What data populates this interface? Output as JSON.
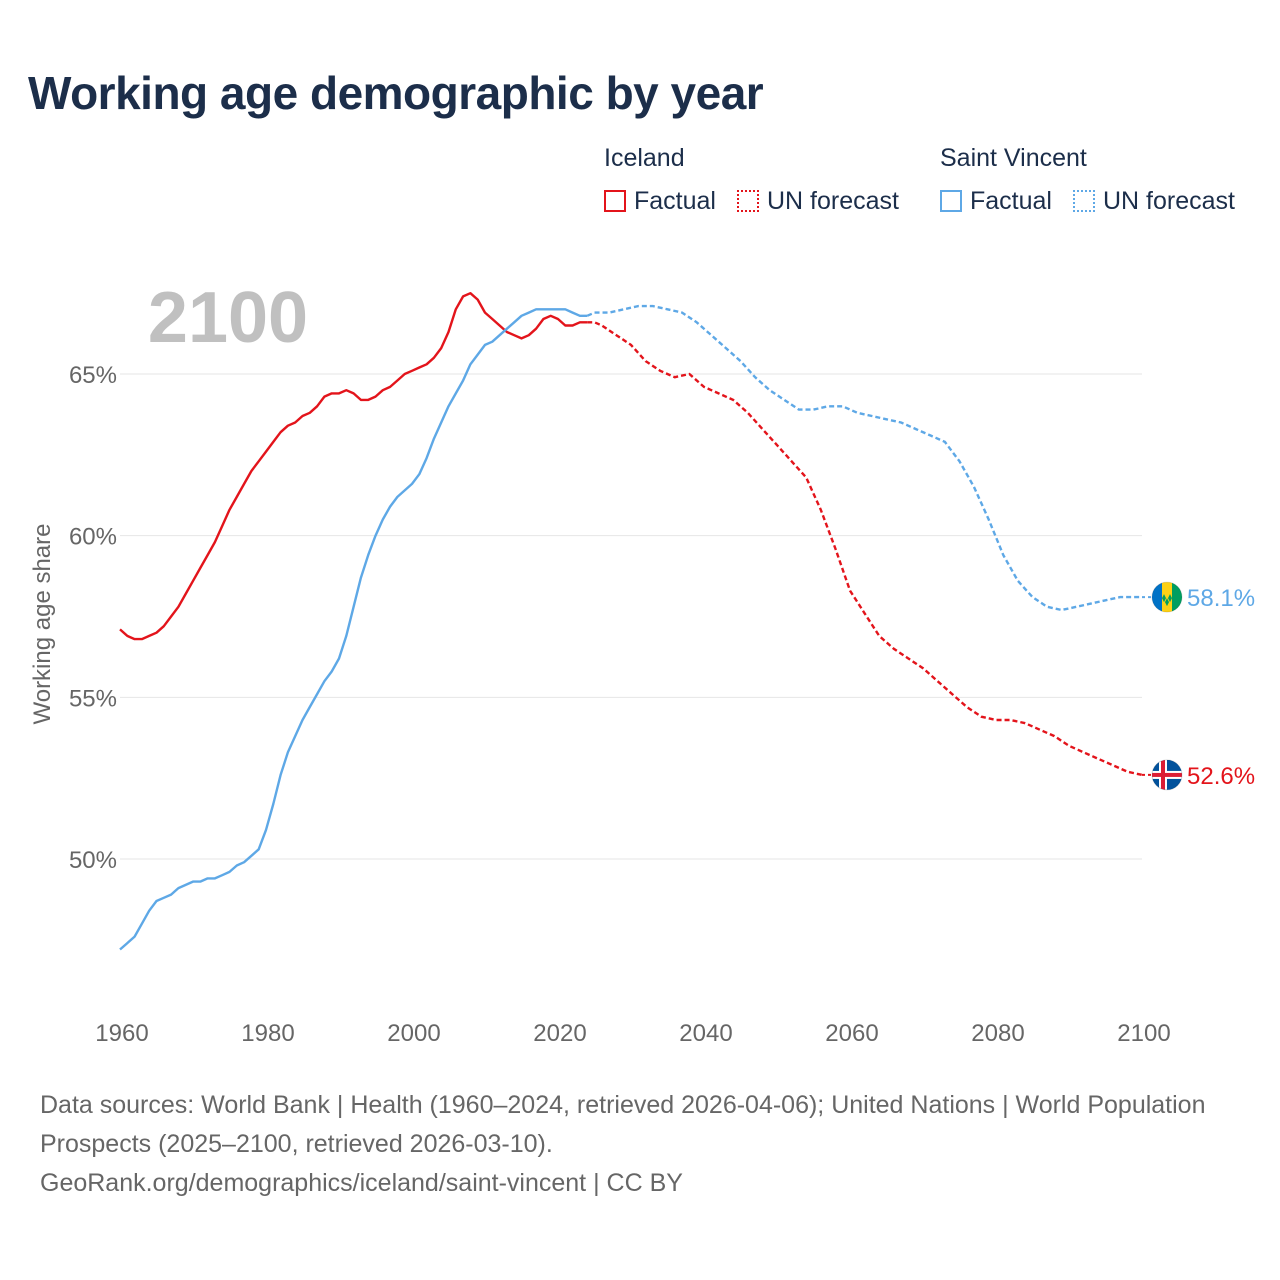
{
  "title": "Working age demographic by year",
  "colors": {
    "iceland": "#e3141b",
    "saint_vincent": "#5ea8e6",
    "title": "#1c2e4a",
    "axis_text": "#666666",
    "grid": "#e6e6e6",
    "year_watermark": "#c0c0c0"
  },
  "legend": {
    "groups": [
      {
        "name": "Iceland",
        "factual_label": "Factual",
        "forecast_label": "UN forecast",
        "color": "#e3141b"
      },
      {
        "name": "Saint Vincent",
        "factual_label": "Factual",
        "forecast_label": "UN forecast",
        "color": "#5ea8e6"
      }
    ]
  },
  "chart_data": {
    "type": "line",
    "title": "Working age demographic by year",
    "current_year_label": "2100",
    "xlabel": "",
    "ylabel": "Working age share",
    "xlim": [
      1960,
      2100
    ],
    "ylim": [
      46.5,
      66.5
    ],
    "x_ticks": [
      1960,
      1980,
      2000,
      2020,
      2040,
      2060,
      2080,
      2100
    ],
    "y_ticks": [
      50,
      55,
      60,
      65
    ],
    "y_tick_labels": [
      "50%",
      "55%",
      "60%",
      "65%"
    ],
    "factual_range": [
      1960,
      2024
    ],
    "forecast_range": [
      2024,
      2100
    ],
    "series": [
      {
        "name": "Iceland",
        "end_label": "52.6%",
        "flag": "iceland-flag",
        "points": [
          [
            1960,
            57.1
          ],
          [
            1961,
            56.9
          ],
          [
            1962,
            56.8
          ],
          [
            1963,
            56.8
          ],
          [
            1964,
            56.9
          ],
          [
            1965,
            57.0
          ],
          [
            1966,
            57.2
          ],
          [
            1967,
            57.5
          ],
          [
            1968,
            57.8
          ],
          [
            1969,
            58.2
          ],
          [
            1970,
            58.6
          ],
          [
            1971,
            59.0
          ],
          [
            1972,
            59.4
          ],
          [
            1973,
            59.8
          ],
          [
            1974,
            60.3
          ],
          [
            1975,
            60.8
          ],
          [
            1976,
            61.2
          ],
          [
            1977,
            61.6
          ],
          [
            1978,
            62.0
          ],
          [
            1979,
            62.3
          ],
          [
            1980,
            62.6
          ],
          [
            1981,
            62.9
          ],
          [
            1982,
            63.2
          ],
          [
            1983,
            63.4
          ],
          [
            1984,
            63.5
          ],
          [
            1985,
            63.7
          ],
          [
            1986,
            63.8
          ],
          [
            1987,
            64.0
          ],
          [
            1988,
            64.3
          ],
          [
            1989,
            64.4
          ],
          [
            1990,
            64.4
          ],
          [
            1991,
            64.5
          ],
          [
            1992,
            64.4
          ],
          [
            1993,
            64.2
          ],
          [
            1994,
            64.2
          ],
          [
            1995,
            64.3
          ],
          [
            1996,
            64.5
          ],
          [
            1997,
            64.6
          ],
          [
            1998,
            64.8
          ],
          [
            1999,
            65.0
          ],
          [
            2000,
            65.1
          ],
          [
            2001,
            65.2
          ],
          [
            2002,
            65.3
          ],
          [
            2003,
            65.5
          ],
          [
            2004,
            65.8
          ],
          [
            2005,
            66.3
          ],
          [
            2006,
            67.0
          ],
          [
            2007,
            67.4
          ],
          [
            2008,
            67.5
          ],
          [
            2009,
            67.3
          ],
          [
            2010,
            66.9
          ],
          [
            2011,
            66.7
          ],
          [
            2012,
            66.5
          ],
          [
            2013,
            66.3
          ],
          [
            2014,
            66.2
          ],
          [
            2015,
            66.1
          ],
          [
            2016,
            66.2
          ],
          [
            2017,
            66.4
          ],
          [
            2018,
            66.7
          ],
          [
            2019,
            66.8
          ],
          [
            2020,
            66.7
          ],
          [
            2021,
            66.5
          ],
          [
            2022,
            66.5
          ],
          [
            2023,
            66.6
          ],
          [
            2024,
            66.6
          ],
          [
            2025,
            66.6
          ],
          [
            2026,
            66.5
          ],
          [
            2028,
            66.2
          ],
          [
            2030,
            65.9
          ],
          [
            2032,
            65.4
          ],
          [
            2034,
            65.1
          ],
          [
            2036,
            64.9
          ],
          [
            2038,
            65.0
          ],
          [
            2040,
            64.6
          ],
          [
            2042,
            64.4
          ],
          [
            2044,
            64.2
          ],
          [
            2046,
            63.8
          ],
          [
            2048,
            63.3
          ],
          [
            2050,
            62.8
          ],
          [
            2052,
            62.3
          ],
          [
            2054,
            61.8
          ],
          [
            2056,
            60.8
          ],
          [
            2058,
            59.6
          ],
          [
            2060,
            58.3
          ],
          [
            2062,
            57.6
          ],
          [
            2064,
            56.9
          ],
          [
            2066,
            56.5
          ],
          [
            2068,
            56.2
          ],
          [
            2070,
            55.9
          ],
          [
            2072,
            55.5
          ],
          [
            2074,
            55.1
          ],
          [
            2076,
            54.7
          ],
          [
            2078,
            54.4
          ],
          [
            2080,
            54.3
          ],
          [
            2082,
            54.3
          ],
          [
            2084,
            54.2
          ],
          [
            2086,
            54.0
          ],
          [
            2088,
            53.8
          ],
          [
            2090,
            53.5
          ],
          [
            2092,
            53.3
          ],
          [
            2094,
            53.1
          ],
          [
            2096,
            52.9
          ],
          [
            2098,
            52.7
          ],
          [
            2100,
            52.6
          ]
        ]
      },
      {
        "name": "Saint Vincent",
        "end_label": "58.1%",
        "flag": "saint-vincent-flag",
        "points": [
          [
            1960,
            47.2
          ],
          [
            1961,
            47.4
          ],
          [
            1962,
            47.6
          ],
          [
            1963,
            48.0
          ],
          [
            1964,
            48.4
          ],
          [
            1965,
            48.7
          ],
          [
            1966,
            48.8
          ],
          [
            1967,
            48.9
          ],
          [
            1968,
            49.1
          ],
          [
            1969,
            49.2
          ],
          [
            1970,
            49.3
          ],
          [
            1971,
            49.3
          ],
          [
            1972,
            49.4
          ],
          [
            1973,
            49.4
          ],
          [
            1974,
            49.5
          ],
          [
            1975,
            49.6
          ],
          [
            1976,
            49.8
          ],
          [
            1977,
            49.9
          ],
          [
            1978,
            50.1
          ],
          [
            1979,
            50.3
          ],
          [
            1980,
            50.9
          ],
          [
            1981,
            51.7
          ],
          [
            1982,
            52.6
          ],
          [
            1983,
            53.3
          ],
          [
            1984,
            53.8
          ],
          [
            1985,
            54.3
          ],
          [
            1986,
            54.7
          ],
          [
            1987,
            55.1
          ],
          [
            1988,
            55.5
          ],
          [
            1989,
            55.8
          ],
          [
            1990,
            56.2
          ],
          [
            1991,
            56.9
          ],
          [
            1992,
            57.8
          ],
          [
            1993,
            58.7
          ],
          [
            1994,
            59.4
          ],
          [
            1995,
            60.0
          ],
          [
            1996,
            60.5
          ],
          [
            1997,
            60.9
          ],
          [
            1998,
            61.2
          ],
          [
            1999,
            61.4
          ],
          [
            2000,
            61.6
          ],
          [
            2001,
            61.9
          ],
          [
            2002,
            62.4
          ],
          [
            2003,
            63.0
          ],
          [
            2004,
            63.5
          ],
          [
            2005,
            64.0
          ],
          [
            2006,
            64.4
          ],
          [
            2007,
            64.8
          ],
          [
            2008,
            65.3
          ],
          [
            2009,
            65.6
          ],
          [
            2010,
            65.9
          ],
          [
            2011,
            66.0
          ],
          [
            2012,
            66.2
          ],
          [
            2013,
            66.4
          ],
          [
            2014,
            66.6
          ],
          [
            2015,
            66.8
          ],
          [
            2016,
            66.9
          ],
          [
            2017,
            67.0
          ],
          [
            2018,
            67.0
          ],
          [
            2019,
            67.0
          ],
          [
            2020,
            67.0
          ],
          [
            2021,
            67.0
          ],
          [
            2022,
            66.9
          ],
          [
            2023,
            66.8
          ],
          [
            2024,
            66.8
          ],
          [
            2025,
            66.9
          ],
          [
            2027,
            66.9
          ],
          [
            2029,
            67.0
          ],
          [
            2031,
            67.1
          ],
          [
            2033,
            67.1
          ],
          [
            2035,
            67.0
          ],
          [
            2037,
            66.9
          ],
          [
            2039,
            66.6
          ],
          [
            2041,
            66.2
          ],
          [
            2043,
            65.8
          ],
          [
            2045,
            65.4
          ],
          [
            2047,
            64.9
          ],
          [
            2049,
            64.5
          ],
          [
            2051,
            64.2
          ],
          [
            2053,
            63.9
          ],
          [
            2055,
            63.9
          ],
          [
            2057,
            64.0
          ],
          [
            2059,
            64.0
          ],
          [
            2061,
            63.8
          ],
          [
            2063,
            63.7
          ],
          [
            2065,
            63.6
          ],
          [
            2067,
            63.5
          ],
          [
            2069,
            63.3
          ],
          [
            2071,
            63.1
          ],
          [
            2073,
            62.9
          ],
          [
            2075,
            62.3
          ],
          [
            2077,
            61.5
          ],
          [
            2079,
            60.5
          ],
          [
            2081,
            59.4
          ],
          [
            2083,
            58.6
          ],
          [
            2085,
            58.1
          ],
          [
            2087,
            57.8
          ],
          [
            2089,
            57.7
          ],
          [
            2091,
            57.8
          ],
          [
            2093,
            57.9
          ],
          [
            2095,
            58.0
          ],
          [
            2097,
            58.1
          ],
          [
            2099,
            58.1
          ],
          [
            2100,
            58.1
          ]
        ]
      }
    ]
  },
  "footer": {
    "line1": "Data sources: World Bank | Health (1960–2024, retrieved 2026-04-06); United Nations | World Population Prospects (2025–2100, retrieved 2026-03-10).",
    "line2": "GeoRank.org/demographics/iceland/saint-vincent | CC BY"
  }
}
